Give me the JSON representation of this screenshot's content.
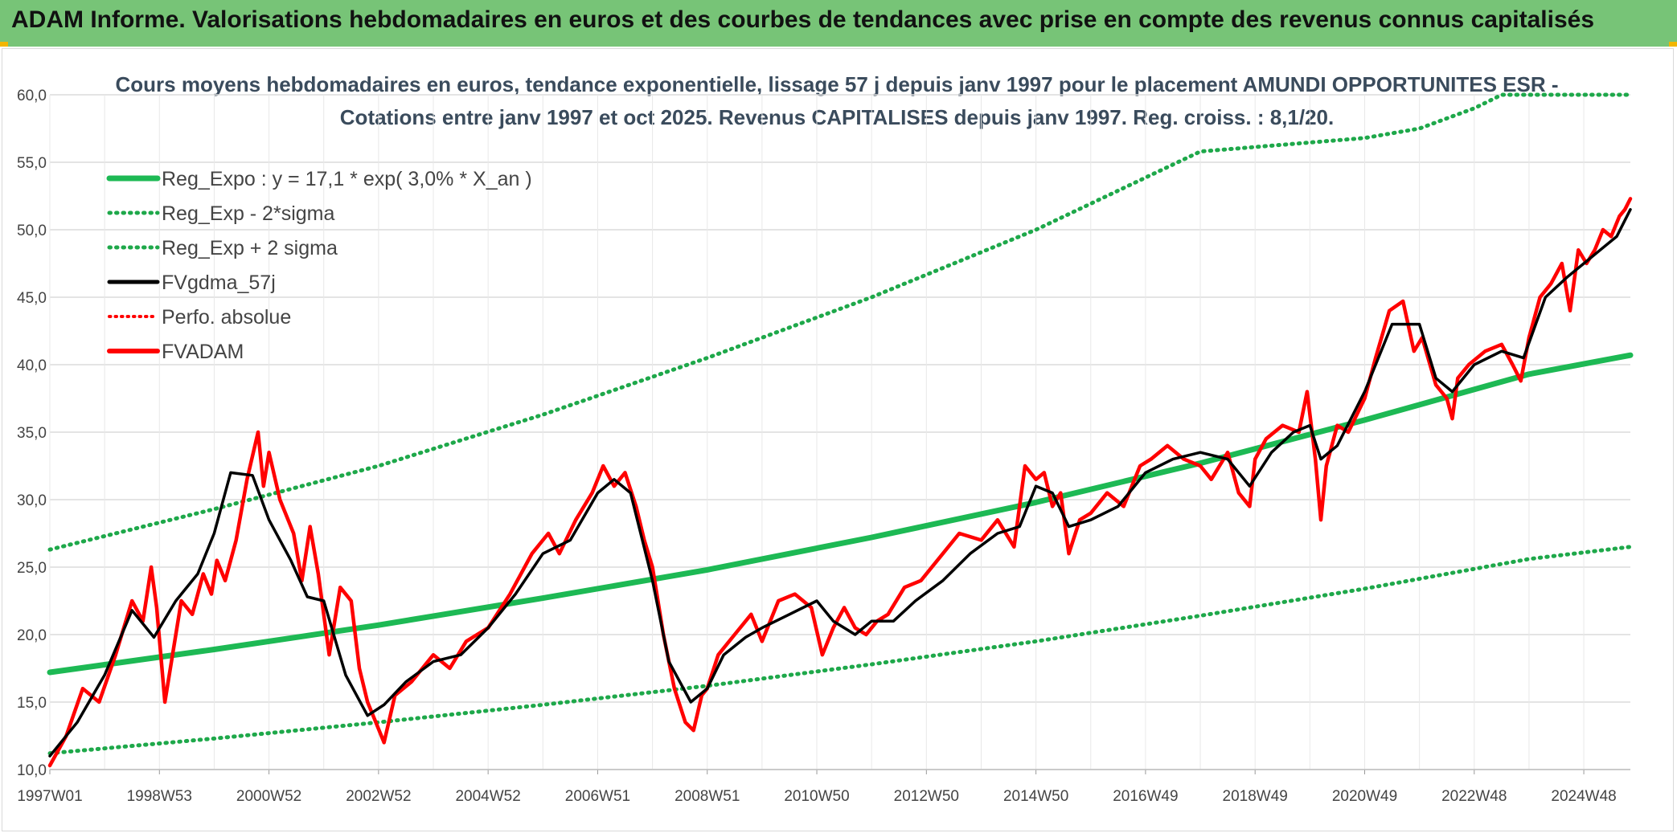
{
  "banner": {
    "title": "ADAM Informe. Valorisations hebdomadaires en euros et des courbes de tendances avec prise en compte des revenus connus capitalisés"
  },
  "chart_data": {
    "type": "line",
    "title_line1": "Cours moyens hebdomadaires en euros, tendance exponentielle, lissage 57 j depuis janv 1997 pour le placement AMUNDI OPPORTUNITES ESR -",
    "title_line2": "Cotations entre janv 1997 et oct 2025. Revenus CAPITALISES depuis janv 1997. Reg. croiss. : 8,1/20.",
    "ylim": [
      10,
      60
    ],
    "xlim": [
      1997.0,
      2025.85
    ],
    "y_ticks": [
      "10,0",
      "15,0",
      "20,0",
      "25,0",
      "30,0",
      "35,0",
      "40,0",
      "45,0",
      "50,0",
      "55,0",
      "60,0"
    ],
    "x_ticks": [
      {
        "label": "1997W01",
        "x": 1997.0
      },
      {
        "label": "1998W53",
        "x": 1999.0
      },
      {
        "label": "2000W52",
        "x": 2001.0
      },
      {
        "label": "2002W52",
        "x": 2003.0
      },
      {
        "label": "2004W52",
        "x": 2005.0
      },
      {
        "label": "2006W51",
        "x": 2007.0
      },
      {
        "label": "2008W51",
        "x": 2009.0
      },
      {
        "label": "2010W50",
        "x": 2011.0
      },
      {
        "label": "2012W50",
        "x": 2013.0
      },
      {
        "label": "2014W50",
        "x": 2015.0
      },
      {
        "label": "2016W49",
        "x": 2017.0
      },
      {
        "label": "2018W49",
        "x": 2019.0
      },
      {
        "label": "2020W49",
        "x": 2021.0
      },
      {
        "label": "2022W48",
        "x": 2023.0
      },
      {
        "label": "2024W48",
        "x": 2025.0
      }
    ],
    "colors": {
      "reg": "#1db954",
      "band": "#1ea84a",
      "smooth": "#000000",
      "price": "#ff0000",
      "grid": "#dcdcdc"
    },
    "legend": [
      {
        "label": "Reg_Expo : y = 17,1 * exp( 3,0% *  X_an )",
        "style": "solid-green"
      },
      {
        "label": "Reg_Exp - 2*sigma",
        "style": "dotted-green"
      },
      {
        "label": "Reg_Exp + 2 sigma",
        "style": "dotted-green"
      },
      {
        "label": "FVgdma_57j",
        "style": "solid-black"
      },
      {
        "label": "Perfo. absolue",
        "style": "dotted-red"
      },
      {
        "label": "FVADAM",
        "style": "solid-red"
      }
    ],
    "series": [
      {
        "name": "Reg_Expo : y = 17,1 * exp( 3,0% *  X_an )",
        "x": [
          1997.0,
          2000.0,
          2003.0,
          2006.0,
          2009.0,
          2012.0,
          2015.0,
          2018.0,
          2021.0,
          2024.0,
          2025.85
        ],
        "values": [
          17.2,
          18.9,
          20.7,
          22.7,
          24.8,
          27.2,
          29.8,
          32.7,
          35.9,
          39.3,
          40.7
        ]
      },
      {
        "name": "Reg_Exp - 2*sigma",
        "x": [
          1997.0,
          2000.0,
          2003.0,
          2006.0,
          2009.0,
          2012.0,
          2015.0,
          2018.0,
          2021.0,
          2024.0,
          2025.85
        ],
        "values": [
          11.2,
          12.3,
          13.5,
          14.8,
          16.2,
          17.8,
          19.5,
          21.4,
          23.4,
          25.6,
          26.5
        ]
      },
      {
        "name": "Reg_Exp + 2 sigma",
        "x": [
          1997.0,
          2000.0,
          2003.0,
          2006.0,
          2009.0,
          2012.0,
          2015.0,
          2018.0,
          2021.0,
          2022.0,
          2023.0,
          2023.5,
          2024.0,
          2025.85
        ],
        "values": [
          26.3,
          29.3,
          32.5,
          36.3,
          40.5,
          45.0,
          50.0,
          55.8,
          56.8,
          57.5,
          59.0,
          60.0,
          60.0,
          60.0
        ]
      },
      {
        "name": "FVgdma_57j",
        "x": [
          1997.0,
          1997.5,
          1998.0,
          1998.5,
          1998.9,
          1999.3,
          1999.7,
          2000.0,
          2000.3,
          2000.7,
          2001.0,
          2001.4,
          2001.7,
          2002.0,
          2002.4,
          2002.8,
          2003.1,
          2003.5,
          2004.0,
          2004.5,
          2005.0,
          2005.5,
          2006.0,
          2006.5,
          2007.0,
          2007.3,
          2007.6,
          2008.0,
          2008.3,
          2008.7,
          2009.0,
          2009.3,
          2009.7,
          2010.0,
          2010.5,
          2011.0,
          2011.3,
          2011.7,
          2012.0,
          2012.4,
          2012.8,
          2013.3,
          2013.8,
          2014.3,
          2014.7,
          2015.0,
          2015.3,
          2015.6,
          2016.0,
          2016.5,
          2017.0,
          2017.5,
          2018.0,
          2018.5,
          2018.9,
          2019.3,
          2019.7,
          2020.0,
          2020.2,
          2020.5,
          2021.0,
          2021.5,
          2022.0,
          2022.3,
          2022.6,
          2023.0,
          2023.5,
          2023.9,
          2024.3,
          2024.7,
          2025.0,
          2025.3,
          2025.6,
          2025.85
        ],
        "values": [
          11.0,
          13.5,
          17.0,
          21.8,
          19.8,
          22.5,
          24.5,
          27.5,
          32.0,
          31.8,
          28.5,
          25.5,
          22.8,
          22.5,
          17.0,
          14.0,
          14.8,
          16.5,
          18.0,
          18.5,
          20.5,
          23.0,
          26.0,
          27.0,
          30.5,
          31.5,
          30.5,
          24.0,
          18.0,
          15.0,
          16.0,
          18.5,
          19.8,
          20.5,
          21.5,
          22.5,
          21.0,
          20.0,
          21.0,
          21.0,
          22.5,
          24.0,
          26.0,
          27.5,
          28.0,
          31.0,
          30.5,
          28.0,
          28.5,
          29.5,
          32.0,
          33.0,
          33.5,
          33.0,
          31.0,
          33.5,
          35.0,
          35.5,
          33.0,
          34.0,
          38.0,
          43.0,
          43.0,
          39.0,
          38.0,
          40.0,
          41.0,
          40.5,
          45.0,
          46.5,
          47.5,
          48.5,
          49.5,
          51.5
        ]
      },
      {
        "name": "FVADAM",
        "x": [
          1997.0,
          1997.3,
          1997.6,
          1997.9,
          1998.2,
          1998.5,
          1998.7,
          1998.85,
          1998.95,
          1999.1,
          1999.4,
          1999.6,
          1999.8,
          1999.95,
          2000.05,
          2000.2,
          2000.4,
          2000.6,
          2000.8,
          2000.9,
          2001.0,
          2001.2,
          2001.45,
          2001.6,
          2001.75,
          2001.9,
          2002.1,
          2002.3,
          2002.5,
          2002.65,
          2002.8,
          2002.95,
          2003.1,
          2003.3,
          2003.6,
          2004.0,
          2004.3,
          2004.6,
          2005.0,
          2005.4,
          2005.8,
          2006.1,
          2006.3,
          2006.6,
          2006.9,
          2007.1,
          2007.3,
          2007.5,
          2007.7,
          2007.85,
          2008.0,
          2008.2,
          2008.4,
          2008.6,
          2008.75,
          2008.9,
          2009.0,
          2009.2,
          2009.5,
          2009.8,
          2010.0,
          2010.3,
          2010.6,
          2010.9,
          2011.1,
          2011.3,
          2011.5,
          2011.7,
          2011.9,
          2012.1,
          2012.3,
          2012.6,
          2012.9,
          2013.2,
          2013.6,
          2014.0,
          2014.3,
          2014.6,
          2014.8,
          2015.0,
          2015.15,
          2015.3,
          2015.45,
          2015.6,
          2015.8,
          2016.0,
          2016.3,
          2016.6,
          2016.9,
          2017.1,
          2017.4,
          2017.7,
          2018.0,
          2018.2,
          2018.5,
          2018.7,
          2018.9,
          2019.0,
          2019.2,
          2019.5,
          2019.8,
          2019.95,
          2020.1,
          2020.2,
          2020.3,
          2020.5,
          2020.7,
          2021.0,
          2021.2,
          2021.45,
          2021.7,
          2021.9,
          2022.05,
          2022.3,
          2022.5,
          2022.6,
          2022.7,
          2022.9,
          2023.2,
          2023.5,
          2023.7,
          2023.85,
          2024.0,
          2024.2,
          2024.4,
          2024.6,
          2024.75,
          2024.9,
          2025.05,
          2025.2,
          2025.35,
          2025.5,
          2025.65,
          2025.75,
          2025.85
        ],
        "values": [
          10.3,
          12.5,
          16.0,
          15.0,
          18.5,
          22.5,
          21.0,
          25.0,
          22.0,
          15.0,
          22.5,
          21.5,
          24.5,
          23.0,
          25.5,
          24.0,
          27.0,
          31.5,
          35.0,
          31.0,
          33.5,
          30.0,
          27.5,
          24.0,
          28.0,
          24.5,
          18.5,
          23.5,
          22.5,
          17.5,
          15.0,
          13.5,
          12.0,
          15.5,
          16.5,
          18.5,
          17.5,
          19.5,
          20.5,
          23.0,
          26.0,
          27.5,
          26.0,
          28.5,
          30.5,
          32.5,
          31.0,
          32.0,
          29.5,
          27.0,
          25.0,
          20.0,
          16.0,
          13.5,
          12.9,
          15.5,
          16.0,
          18.5,
          20.0,
          21.5,
          19.5,
          22.5,
          23.0,
          22.0,
          18.5,
          20.5,
          22.0,
          20.5,
          20.0,
          21.0,
          21.5,
          23.5,
          24.0,
          25.5,
          27.5,
          27.0,
          28.5,
          26.5,
          32.5,
          31.5,
          32.0,
          29.5,
          30.5,
          26.0,
          28.5,
          29.0,
          30.5,
          29.5,
          32.5,
          33.0,
          34.0,
          33.0,
          32.5,
          31.5,
          33.5,
          30.5,
          29.5,
          33.0,
          34.5,
          35.5,
          35.0,
          38.0,
          33.0,
          28.5,
          32.5,
          35.5,
          35.0,
          37.5,
          40.5,
          44.0,
          44.7,
          41.0,
          42.0,
          38.5,
          37.5,
          36.0,
          39.0,
          40.0,
          41.0,
          41.5,
          40.0,
          38.8,
          42.0,
          45.0,
          46.0,
          47.5,
          44.0,
          48.5,
          47.5,
          48.5,
          50.0,
          49.5,
          51.0,
          51.5,
          52.3
        ]
      }
    ]
  }
}
